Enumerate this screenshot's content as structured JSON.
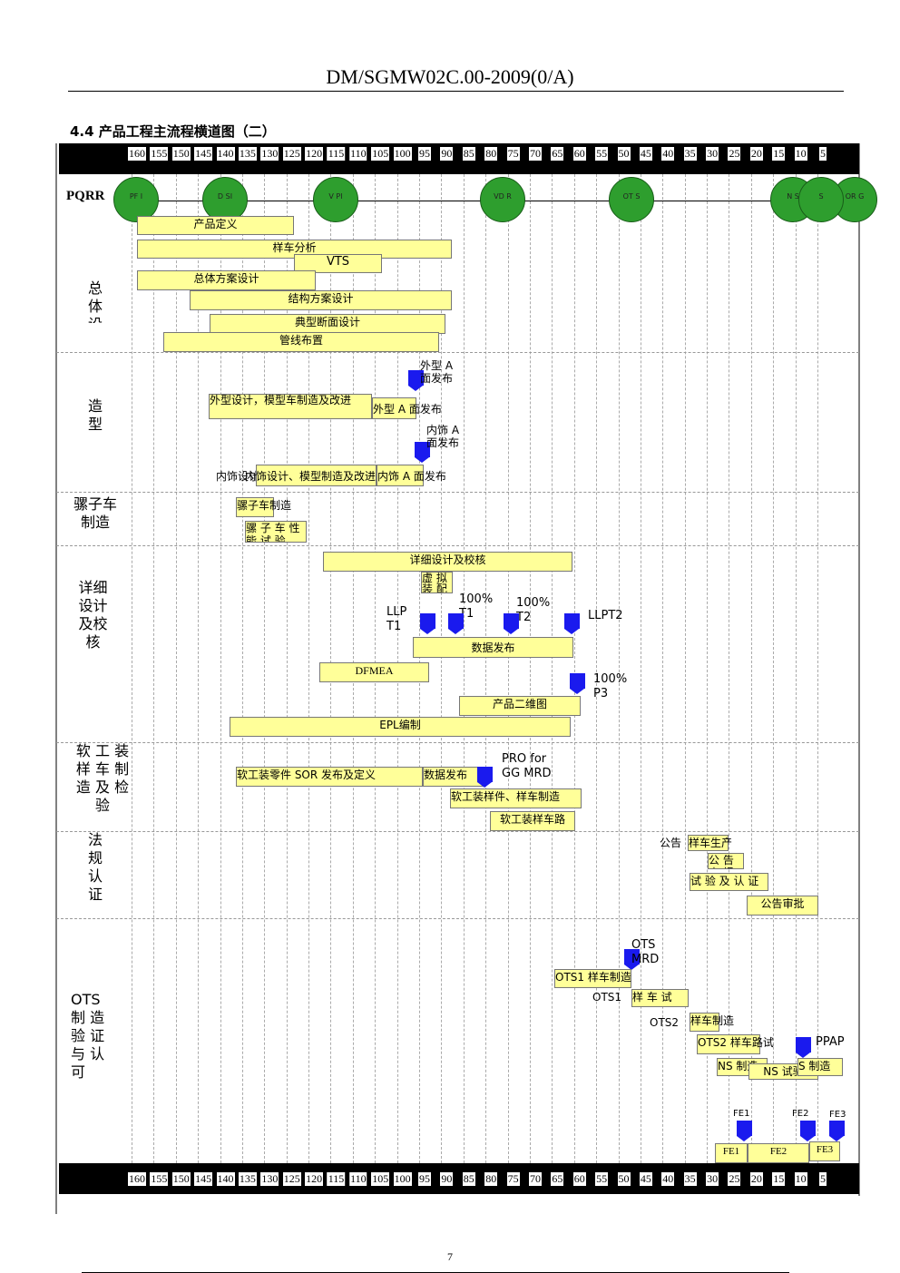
{
  "doc_code": "DM/SGMW02C.00-2009(0/A)",
  "section_title": "4.4 产品工程主流程横道图（二）",
  "scale_ticks": [
    "160",
    "155",
    "150",
    "145",
    "140",
    "135",
    "130",
    "125",
    "120",
    "115",
    "110",
    "105",
    "100",
    "95",
    "90",
    "85",
    "80",
    "75",
    "70",
    "65",
    "60",
    "55",
    "50",
    "45",
    "40",
    "35",
    "30",
    "25",
    "20",
    "15",
    "10",
    "5"
  ],
  "pqrr_label": "PQRR",
  "gates": [
    {
      "label": "PF I"
    },
    {
      "label": "D SI"
    },
    {
      "label": "V PI"
    },
    {
      "label": "VD R"
    },
    {
      "label": "OT S"
    },
    {
      "label": "N S"
    },
    {
      "label": "S"
    },
    {
      "label": "OR G"
    }
  ],
  "categories": {
    "overall": "总\n体\n设",
    "styling": "造\n型",
    "mule": "骡子车\n制造",
    "detail": "详细\n设计\n及校\n核",
    "soft_tool": "软 工 装\n样 车 制\n造 及 检\n验",
    "regulation": "法\n规\n认\n证",
    "ots": "OTS\n制 造\n验 证\n与 认\n可"
  },
  "bars": {
    "product_def": "产品定义",
    "sample_analysis": "样车分析",
    "vts": "VTS",
    "overall_scheme": "总体方案设计",
    "structure_scheme": "结构方案设计",
    "section_design": "典型断面设计",
    "pipeline": "管线布置",
    "exterior_design": "外型设计，模型车制造及改进",
    "exterior_release": "外型 A 面发布",
    "interior_design": "内饰设计、模型制造及改进",
    "interior_release": "内饰 A 面发布",
    "mule_build": "骡子车制造",
    "mule_test": "骡 子 车 性 能 试 验",
    "detail_design": "详细设计及校核",
    "virtual_assembly": "虚 拟 装 配",
    "data_release": "数据发布",
    "dfmea": "DFMEA",
    "product_2d": "产品二维图",
    "epl": "EPL编制",
    "soft_tool_sor": "软工装零件 SOR 发布及定义",
    "soft_tool_data": "数据发布",
    "soft_tool_build": "软工装样件、样车制造",
    "soft_tool_road": "软工装样车路",
    "notice_build": "样车生产",
    "notice_apply": "公 告 申 报",
    "test_cert": "试 验 及 认 证",
    "notice_approve": "公告审批",
    "ots1_build": "OTS1 样车制造",
    "ots1_test": "样 车 试",
    "ots2_build": "样车制造",
    "ots2_road": "OTS2 样车路试",
    "ns_build": "NS 制造",
    "ns_test": "NS 试验",
    "s_build": "S 制造",
    "fe1": "FE1",
    "fe2": "FE2",
    "fe3": "FE3"
  },
  "labels": {
    "ext_a": "外型 A\n面发布",
    "int_a": "内饰 A\n面发布",
    "interior_prefix": "内饰设计",
    "llp_t1": "LLP\nT1",
    "t1": "100%\nT1",
    "t2": "100%\nT2",
    "llpt2": "LLPT2",
    "p3": "100%\nP3",
    "pro_gg": "PRO for\nGG MRD",
    "notice_prefix": "公告",
    "ots_mrd": "OTS\nMRD",
    "ots1_prefix": "OTS1",
    "ots2_prefix": "OTS2",
    "ppap": "PPAP",
    "fe1": "FE1",
    "fe2": "FE2",
    "fe3": "FE3"
  },
  "page_number": "7"
}
